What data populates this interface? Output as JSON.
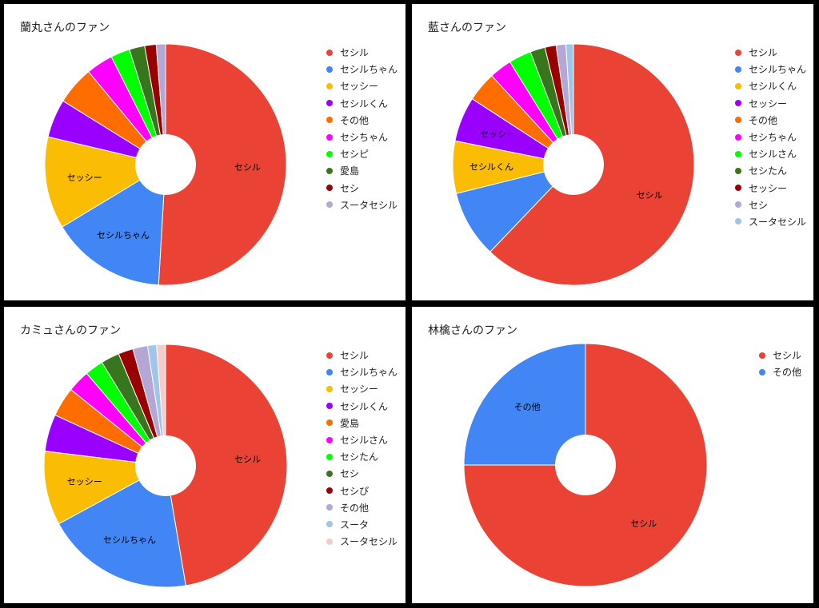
{
  "palette": [
    "#ea4335",
    "#4285f4",
    "#fbbc04",
    "#9900ff",
    "#ff6d01",
    "#ff00ff",
    "#00ff00",
    "#38761d",
    "#990000",
    "#b4a7d6",
    "#9fc5e8",
    "#f4cccc"
  ],
  "chart_data": [
    {
      "type": "pie",
      "title": "蘭丸さんのファン",
      "categories": [
        "セシル",
        "セシルちゃん",
        "セッシー",
        "セシルくん",
        "その他",
        "セシちゃん",
        "セシピ",
        "愛島",
        "セシ",
        "スータセシル"
      ],
      "values": [
        49.5,
        15.0,
        12.0,
        5.0,
        5.0,
        3.5,
        2.5,
        2.0,
        1.5,
        1.2
      ],
      "slice_labels": [
        "セシル",
        "セシルちゃん",
        "セッシー",
        "",
        "",
        "",
        "",
        "",
        "",
        ""
      ],
      "legend_position": "right",
      "hole": "small center hole"
    },
    {
      "type": "pie",
      "title": "藍さんのファン",
      "categories": [
        "セシル",
        "セシルちゃん",
        "セシルくん",
        "セッシー",
        "その他",
        "セシちゃん",
        "セシルさん",
        "セシたん",
        "セッシー",
        "セシ",
        "スータセシル"
      ],
      "values": [
        62.0,
        9.0,
        7.0,
        6.0,
        4.0,
        3.0,
        3.0,
        2.0,
        1.5,
        1.3,
        1.0
      ],
      "slice_labels": [
        "セシル",
        "",
        "セシルくん",
        "セッシー",
        "",
        "",
        "",
        "",
        "",
        "",
        ""
      ],
      "legend_position": "right",
      "hole": "small center hole"
    },
    {
      "type": "pie",
      "title": "カミュさんのファン",
      "categories": [
        "セシル",
        "セシルちゃん",
        "セッシー",
        "セシルくん",
        "愛島",
        "セシルさん",
        "セシたん",
        "セシ",
        "セシぴ",
        "その他",
        "スータ",
        "スータセシル"
      ],
      "values": [
        48.0,
        20.0,
        10.0,
        5.0,
        4.0,
        3.0,
        2.5,
        2.5,
        2.0,
        2.0,
        1.2,
        1.2
      ],
      "slice_labels": [
        "セシル",
        "セシルちゃん",
        "セッシー",
        "",
        "",
        "",
        "",
        "",
        "",
        "",
        "",
        ""
      ],
      "legend_position": "right",
      "hole": "small center hole"
    },
    {
      "type": "pie",
      "title": "林檎さんのファン",
      "categories": [
        "セシル",
        "その他"
      ],
      "values": [
        75.0,
        25.0
      ],
      "slice_labels": [
        "セシル",
        "その他"
      ],
      "legend_position": "top-right",
      "hole": "small center hole"
    }
  ]
}
